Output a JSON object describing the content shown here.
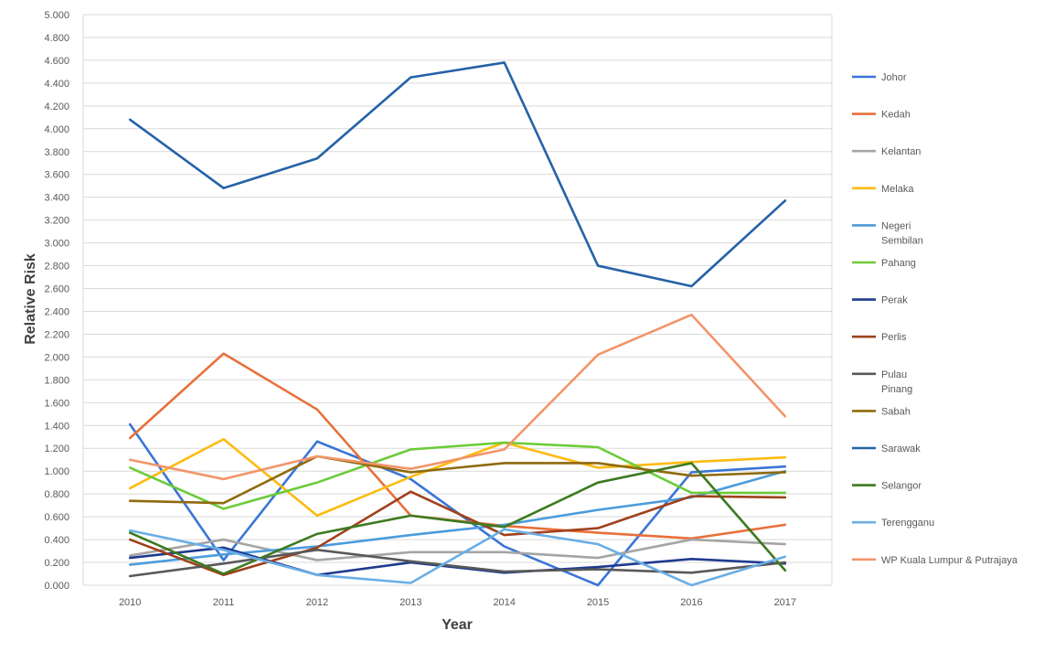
{
  "chart_data": {
    "type": "line",
    "xlabel": "Year",
    "ylabel": "Relative Risk",
    "categories": [
      "2010",
      "2011",
      "2012",
      "2013",
      "2014",
      "2015",
      "2016",
      "2017"
    ],
    "ylim": [
      0,
      5
    ],
    "ystep": 0.2,
    "yticks": [
      "0.000",
      "0.200",
      "0.400",
      "0.600",
      "0.800",
      "1.000",
      "1.200",
      "1.400",
      "1.600",
      "1.800",
      "2.000",
      "2.200",
      "2.400",
      "2.600",
      "2.800",
      "3.000",
      "3.200",
      "3.400",
      "3.600",
      "3.800",
      "4.000",
      "4.200",
      "4.400",
      "4.600",
      "4.800",
      "5.000"
    ],
    "grid": true,
    "legend_position": "right",
    "series": [
      {
        "name": "Johor",
        "legend_lines": [
          "Johor"
        ],
        "color": "#3a75d6",
        "values": [
          1.41,
          0.22,
          1.26,
          0.93,
          0.34,
          0.0,
          0.99,
          1.04
        ]
      },
      {
        "name": "Kedah",
        "legend_lines": [
          "Kedah"
        ],
        "color": "#e8703a",
        "values": [
          1.29,
          2.03,
          1.54,
          0.61,
          0.52,
          0.46,
          0.41,
          0.53
        ]
      },
      {
        "name": "Kelantan",
        "legend_lines": [
          "Kelantan"
        ],
        "color": "#a5a5a5",
        "values": [
          0.26,
          0.4,
          0.22,
          0.29,
          0.29,
          0.24,
          0.4,
          0.36
        ]
      },
      {
        "name": "Melaka",
        "legend_lines": [
          "Melaka"
        ],
        "color": "#fdbb10",
        "values": [
          0.85,
          1.28,
          0.61,
          0.95,
          1.25,
          1.03,
          1.08,
          1.12
        ]
      },
      {
        "name": "Negeri Sembilan",
        "legend_lines": [
          "Negeri",
          "Sembilan"
        ],
        "color": "#4b9cdc",
        "values": [
          0.18,
          0.27,
          0.34,
          0.44,
          0.53,
          0.66,
          0.77,
          1.0
        ]
      },
      {
        "name": "Pahang",
        "legend_lines": [
          "Pahang"
        ],
        "color": "#6ccb3a",
        "values": [
          1.03,
          0.67,
          0.9,
          1.19,
          1.25,
          1.21,
          0.81,
          0.81
        ]
      },
      {
        "name": "Perak",
        "legend_lines": [
          "Perak"
        ],
        "color": "#1f3b8f",
        "values": [
          0.24,
          0.33,
          0.09,
          0.2,
          0.11,
          0.16,
          0.23,
          0.19
        ]
      },
      {
        "name": "Perlis",
        "legend_lines": [
          "Perlis"
        ],
        "color": "#a0411c",
        "values": [
          0.4,
          0.09,
          0.33,
          0.82,
          0.44,
          0.5,
          0.78,
          0.77
        ]
      },
      {
        "name": "Pulau Pinang",
        "legend_lines": [
          "Pulau",
          "Pinang"
        ],
        "color": "#595959",
        "values": [
          0.08,
          0.19,
          0.31,
          0.21,
          0.12,
          0.14,
          0.11,
          0.2
        ]
      },
      {
        "name": "Sabah",
        "legend_lines": [
          "Sabah"
        ],
        "color": "#8f6a0e",
        "values": [
          0.74,
          0.72,
          1.13,
          0.99,
          1.07,
          1.07,
          0.96,
          0.99
        ]
      },
      {
        "name": "Sarawak",
        "legend_lines": [
          "Sarawak"
        ],
        "color": "#2562a8",
        "values": [
          4.08,
          3.48,
          3.74,
          4.45,
          4.58,
          2.8,
          2.62,
          3.37
        ]
      },
      {
        "name": "Selangor",
        "legend_lines": [
          "Selangor"
        ],
        "color": "#3d7a1f",
        "values": [
          0.46,
          0.1,
          0.45,
          0.61,
          0.51,
          0.9,
          1.07,
          0.13
        ]
      },
      {
        "name": "Terengganu",
        "legend_lines": [
          "Terengganu"
        ],
        "color": "#6aaee6",
        "values": [
          0.48,
          0.31,
          0.09,
          0.02,
          0.49,
          0.36,
          0.0,
          0.25
        ]
      },
      {
        "name": "WP Kuala Lumpur & Putrajaya",
        "legend_lines": [
          "WP Kuala Lumpur & Putrajaya"
        ],
        "color": "#f2956a",
        "values": [
          1.1,
          0.93,
          1.13,
          1.02,
          1.19,
          2.02,
          2.37,
          1.48
        ]
      }
    ]
  }
}
